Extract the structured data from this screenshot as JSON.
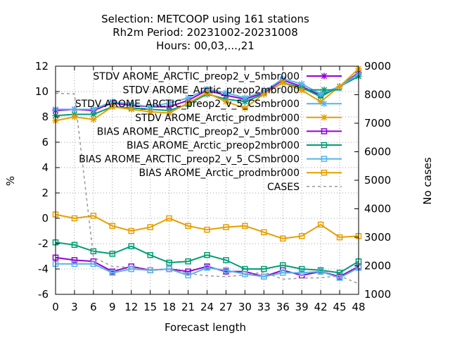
{
  "chart_data": {
    "type": "line",
    "title_lines": [
      "Selection: METCOOP using   161 stations",
      "Rh2m   Period: 20231002-20231008",
      "Hours:  00,03,...,21"
    ],
    "xlabel": "Forecast length",
    "ylabel": "%",
    "y2label": "No cases",
    "x": [
      0,
      3,
      6,
      9,
      12,
      15,
      18,
      21,
      24,
      27,
      30,
      33,
      36,
      39,
      42,
      45,
      48
    ],
    "xlim": [
      0,
      48
    ],
    "ylim": [
      -6,
      12
    ],
    "y2lim": [
      1000,
      9000
    ],
    "xticks": [
      0,
      3,
      6,
      9,
      12,
      15,
      18,
      21,
      24,
      27,
      30,
      33,
      36,
      39,
      42,
      45,
      48
    ],
    "yticks": [
      -6,
      -4,
      -2,
      0,
      2,
      4,
      6,
      8,
      10,
      12
    ],
    "y2ticks": [
      1000,
      2000,
      3000,
      4000,
      5000,
      6000,
      7000,
      8000,
      9000
    ],
    "grid": true,
    "legend_position": "top-right",
    "series": [
      {
        "name": "STDV AROME_ARCTIC_preop2_v_5mbr000",
        "color": "#9400d3",
        "marker": "star",
        "axis": "y",
        "values": [
          8.5,
          8.6,
          8.5,
          9.1,
          8.9,
          8.8,
          8.8,
          9.3,
          10.1,
          9.7,
          9.4,
          9.9,
          10.9,
          10.4,
          9.7,
          10.4,
          11.5
        ]
      },
      {
        "name": "STDV AROME_Arctic_preop2mbr000",
        "color": "#009e73",
        "marker": "star",
        "axis": "y",
        "values": [
          8.1,
          8.2,
          8.2,
          8.8,
          8.7,
          8.6,
          8.5,
          9.0,
          9.8,
          9.4,
          9.2,
          9.8,
          10.7,
          10.3,
          9.6,
          10.4,
          11.2
        ]
      },
      {
        "name": "STDV AROME_ARCTIC_preop2_v_5_CSmbr000",
        "color": "#56b4e9",
        "marker": "star",
        "axis": "y",
        "values": [
          8.6,
          8.6,
          8.6,
          9.2,
          9.0,
          8.8,
          9.1,
          9.5,
          10.2,
          9.9,
          9.5,
          10.0,
          11.0,
          10.6,
          9.8,
          10.4,
          11.4
        ]
      },
      {
        "name": "STDV AROME_Arctic_prodmbr000",
        "color": "#e69f00",
        "marker": "star",
        "axis": "y",
        "values": [
          7.7,
          8.0,
          7.8,
          8.8,
          8.6,
          8.4,
          8.3,
          9.1,
          9.9,
          9.2,
          8.7,
          9.8,
          10.7,
          10.1,
          9.2,
          10.4,
          11.8
        ]
      },
      {
        "name": "BIAS AROME_ARCTIC_preop2_v_5mbr000",
        "color": "#9400d3",
        "marker": "square",
        "axis": "y",
        "values": [
          -3.1,
          -3.3,
          -3.4,
          -4.2,
          -3.8,
          -4.1,
          -4.0,
          -4.2,
          -3.8,
          -4.2,
          -4.2,
          -4.6,
          -4.1,
          -4.5,
          -4.2,
          -4.6,
          -3.8
        ]
      },
      {
        "name": "BIAS AROME_Arctic_preop2mbr000",
        "color": "#009e73",
        "marker": "square",
        "axis": "y",
        "values": [
          -1.9,
          -2.1,
          -2.6,
          -2.8,
          -2.2,
          -2.9,
          -3.5,
          -3.4,
          -2.9,
          -3.3,
          -4.0,
          -4.0,
          -3.7,
          -4.0,
          -4.1,
          -4.3,
          -3.4
        ]
      },
      {
        "name": "BIAS AROME_ARCTIC_preop2_v_5_CSmbr000",
        "color": "#56b4e9",
        "marker": "square",
        "axis": "y",
        "values": [
          -3.6,
          -3.6,
          -3.6,
          -4.3,
          -4.0,
          -4.1,
          -4.0,
          -4.5,
          -3.9,
          -4.1,
          -4.4,
          -4.6,
          -4.3,
          -4.3,
          -4.2,
          -4.7,
          -3.9
        ]
      },
      {
        "name": "BIAS AROME_Arctic_prodmbr000",
        "color": "#e69f00",
        "marker": "square",
        "axis": "y",
        "values": [
          0.3,
          0.0,
          0.2,
          -0.6,
          -1.0,
          -0.7,
          0.0,
          -0.6,
          -0.9,
          -0.7,
          -0.6,
          -1.1,
          -1.6,
          -1.4,
          -0.5,
          -1.5,
          -1.4
        ]
      },
      {
        "name": "CASES",
        "color": "#999999",
        "marker": "none",
        "dashed": true,
        "axis": "y2",
        "values": [
          8050,
          8030,
          2300,
          1980,
          1940,
          1840,
          1890,
          1730,
          1650,
          1620,
          1680,
          1780,
          1530,
          1570,
          1580,
          1650,
          1370
        ]
      }
    ]
  }
}
